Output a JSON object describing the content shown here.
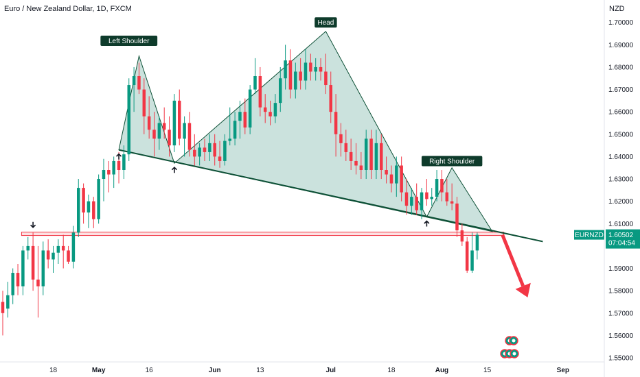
{
  "header": {
    "title": "Euro / New Zealand Dollar, 1D, FXCM",
    "currency": "NZD"
  },
  "chart_data": {
    "type": "candlestick",
    "ylim": [
      1.55,
      1.705
    ],
    "y_ticks": [
      "1.70000",
      "1.69000",
      "1.68000",
      "1.67000",
      "1.66000",
      "1.65000",
      "1.64000",
      "1.63000",
      "1.62000",
      "1.61000",
      "1.59000",
      "1.58000",
      "1.57000",
      "1.56000",
      "1.55000"
    ],
    "x_ticks": [
      {
        "label": "18",
        "i": 10,
        "bold": false
      },
      {
        "label": "May",
        "i": 19,
        "bold": true
      },
      {
        "label": "16",
        "i": 29,
        "bold": false
      },
      {
        "label": "Jun",
        "i": 42,
        "bold": true
      },
      {
        "label": "13",
        "i": 51,
        "bold": false
      },
      {
        "label": "Jul",
        "i": 65,
        "bold": true
      },
      {
        "label": "18",
        "i": 77,
        "bold": false
      },
      {
        "label": "Aug",
        "i": 87,
        "bold": true
      },
      {
        "label": "15",
        "i": 96,
        "bold": false
      },
      {
        "label": "Sep",
        "i": 111,
        "bold": true
      }
    ],
    "candles": [
      [
        1.575,
        1.58,
        1.56,
        1.57
      ],
      [
        1.572,
        1.584,
        1.568,
        1.578
      ],
      [
        1.578,
        1.59,
        1.574,
        1.588
      ],
      [
        1.588,
        1.592,
        1.578,
        1.582
      ],
      [
        1.582,
        1.6,
        1.578,
        1.598
      ],
      [
        1.598,
        1.604,
        1.594,
        1.6
      ],
      [
        1.6,
        1.606,
        1.58,
        1.585
      ],
      [
        1.585,
        1.6,
        1.568,
        1.582
      ],
      [
        1.582,
        1.602,
        1.578,
        1.598
      ],
      [
        1.598,
        1.603,
        1.59,
        1.594
      ],
      [
        1.594,
        1.6,
        1.588,
        1.597
      ],
      [
        1.597,
        1.603,
        1.592,
        1.6
      ],
      [
        1.6,
        1.605,
        1.59,
        1.598
      ],
      [
        1.598,
        1.6,
        1.592,
        1.593
      ],
      [
        1.593,
        1.609,
        1.59,
        1.606
      ],
      [
        1.606,
        1.63,
        1.604,
        1.626
      ],
      [
        1.626,
        1.628,
        1.61,
        1.615
      ],
      [
        1.615,
        1.623,
        1.608,
        1.62
      ],
      [
        1.62,
        1.622,
        1.608,
        1.612
      ],
      [
        1.612,
        1.632,
        1.61,
        1.63
      ],
      [
        1.63,
        1.639,
        1.62,
        1.634
      ],
      [
        1.634,
        1.638,
        1.624,
        1.632
      ],
      [
        1.632,
        1.64,
        1.626,
        1.638
      ],
      [
        1.638,
        1.642,
        1.628,
        1.634
      ],
      [
        1.634,
        1.645,
        1.63,
        1.641
      ],
      [
        1.641,
        1.675,
        1.638,
        1.672
      ],
      [
        1.672,
        1.68,
        1.66,
        1.676
      ],
      [
        1.676,
        1.682,
        1.668,
        1.67
      ],
      [
        1.67,
        1.675,
        1.65,
        1.658
      ],
      [
        1.658,
        1.667,
        1.648,
        1.652
      ],
      [
        1.652,
        1.66,
        1.64,
        1.648
      ],
      [
        1.648,
        1.658,
        1.643,
        1.655
      ],
      [
        1.655,
        1.662,
        1.648,
        1.652
      ],
      [
        1.652,
        1.658,
        1.64,
        1.645
      ],
      [
        1.645,
        1.668,
        1.642,
        1.665
      ],
      [
        1.665,
        1.67,
        1.645,
        1.648
      ],
      [
        1.648,
        1.658,
        1.64,
        1.655
      ],
      [
        1.655,
        1.66,
        1.64,
        1.643
      ],
      [
        1.643,
        1.65,
        1.636,
        1.64
      ],
      [
        1.64,
        1.646,
        1.636,
        1.644
      ],
      [
        1.644,
        1.648,
        1.638,
        1.642
      ],
      [
        1.642,
        1.65,
        1.638,
        1.646
      ],
      [
        1.646,
        1.65,
        1.636,
        1.64
      ],
      [
        1.64,
        1.647,
        1.635,
        1.638
      ],
      [
        1.638,
        1.65,
        1.636,
        1.647
      ],
      [
        1.647,
        1.662,
        1.645,
        1.648
      ],
      [
        1.648,
        1.66,
        1.645,
        1.656
      ],
      [
        1.656,
        1.665,
        1.648,
        1.66
      ],
      [
        1.66,
        1.666,
        1.65,
        1.653
      ],
      [
        1.653,
        1.672,
        1.65,
        1.67
      ],
      [
        1.67,
        1.684,
        1.668,
        1.676
      ],
      [
        1.676,
        1.68,
        1.658,
        1.662
      ],
      [
        1.662,
        1.668,
        1.655,
        1.66
      ],
      [
        1.66,
        1.665,
        1.654,
        1.658
      ],
      [
        1.658,
        1.668,
        1.655,
        1.664
      ],
      [
        1.664,
        1.68,
        1.66,
        1.675
      ],
      [
        1.675,
        1.69,
        1.67,
        1.683
      ],
      [
        1.683,
        1.688,
        1.666,
        1.67
      ],
      [
        1.67,
        1.682,
        1.666,
        1.678
      ],
      [
        1.678,
        1.684,
        1.67,
        1.674
      ],
      [
        1.674,
        1.688,
        1.67,
        1.682
      ],
      [
        1.682,
        1.686,
        1.674,
        1.678
      ],
      [
        1.678,
        1.684,
        1.674,
        1.68
      ],
      [
        1.68,
        1.684,
        1.674,
        1.678
      ],
      [
        1.678,
        1.686,
        1.668,
        1.672
      ],
      [
        1.672,
        1.678,
        1.655,
        1.66
      ],
      [
        1.66,
        1.668,
        1.64,
        1.65
      ],
      [
        1.65,
        1.655,
        1.64,
        1.646
      ],
      [
        1.646,
        1.652,
        1.638,
        1.642
      ],
      [
        1.642,
        1.648,
        1.634,
        1.638
      ],
      [
        1.638,
        1.646,
        1.632,
        1.636
      ],
      [
        1.636,
        1.642,
        1.63,
        1.634
      ],
      [
        1.634,
        1.652,
        1.63,
        1.648
      ],
      [
        1.648,
        1.652,
        1.63,
        1.634
      ],
      [
        1.634,
        1.652,
        1.63,
        1.646
      ],
      [
        1.646,
        1.65,
        1.63,
        1.634
      ],
      [
        1.634,
        1.64,
        1.628,
        1.632
      ],
      [
        1.632,
        1.636,
        1.624,
        1.628
      ],
      [
        1.628,
        1.64,
        1.622,
        1.636
      ],
      [
        1.636,
        1.64,
        1.62,
        1.624
      ],
      [
        1.624,
        1.63,
        1.614,
        1.618
      ],
      [
        1.618,
        1.626,
        1.614,
        1.622
      ],
      [
        1.622,
        1.628,
        1.614,
        1.616
      ],
      [
        1.616,
        1.626,
        1.612,
        1.624
      ],
      [
        1.624,
        1.63,
        1.618,
        1.621
      ],
      [
        1.621,
        1.626,
        1.618,
        1.622
      ],
      [
        1.622,
        1.634,
        1.62,
        1.63
      ],
      [
        1.63,
        1.634,
        1.62,
        1.624
      ],
      [
        1.624,
        1.63,
        1.618,
        1.62
      ],
      [
        1.62,
        1.628,
        1.616,
        1.619
      ],
      [
        1.619,
        1.622,
        1.604,
        1.607
      ],
      [
        1.607,
        1.61,
        1.6,
        1.602
      ],
      [
        1.602,
        1.604,
        1.588,
        1.589
      ],
      [
        1.589,
        1.606,
        1.588,
        1.598
      ],
      [
        1.598,
        1.606,
        1.594,
        1.605
      ]
    ],
    "colors": {
      "up": "#089981",
      "down": "#f23645",
      "pattern_fill": "#a8cfc7",
      "pattern_line": "#0e5137"
    },
    "annotations": [
      {
        "text": "Left Shoulder",
        "i": 25,
        "y": 1.6918
      },
      {
        "text": "Head",
        "i": 64,
        "y": 1.7
      },
      {
        "text": "Right Shoulder",
        "i": 89,
        "y": 1.638
      }
    ],
    "pattern_points": [
      {
        "i": 23,
        "y": 1.643
      },
      {
        "i": 27,
        "y": 1.685
      },
      {
        "i": 34,
        "y": 1.637
      },
      {
        "i": 64,
        "y": 1.696
      },
      {
        "i": 84,
        "y": 1.613
      },
      {
        "i": 89,
        "y": 1.635
      },
      {
        "i": 97,
        "y": 1.6065
      }
    ],
    "neckline": {
      "from": {
        "i": 23,
        "y": 1.643
      },
      "to": {
        "i": 107,
        "y": 1.602
      }
    },
    "resistance_zone": {
      "from_i": 4,
      "to_i": 99,
      "y_top": 1.6062,
      "y_bottom": 1.6047
    },
    "down_arrow": {
      "from": {
        "i": 99,
        "y": 1.605
      },
      "to": {
        "i": 104,
        "y": 1.577
      }
    },
    "pivot_marks": [
      {
        "i": 23,
        "y": 1.643,
        "dir": "up"
      },
      {
        "i": 34,
        "y": 1.637,
        "dir": "up"
      },
      {
        "i": 84,
        "y": 1.613,
        "dir": "up"
      },
      {
        "i": 6,
        "y": 1.6065,
        "dir": "down"
      }
    ],
    "price_label": {
      "symbol": "EURNZD",
      "price": "1.60502",
      "countdown": "07:04:54",
      "value": 1.605
    }
  }
}
